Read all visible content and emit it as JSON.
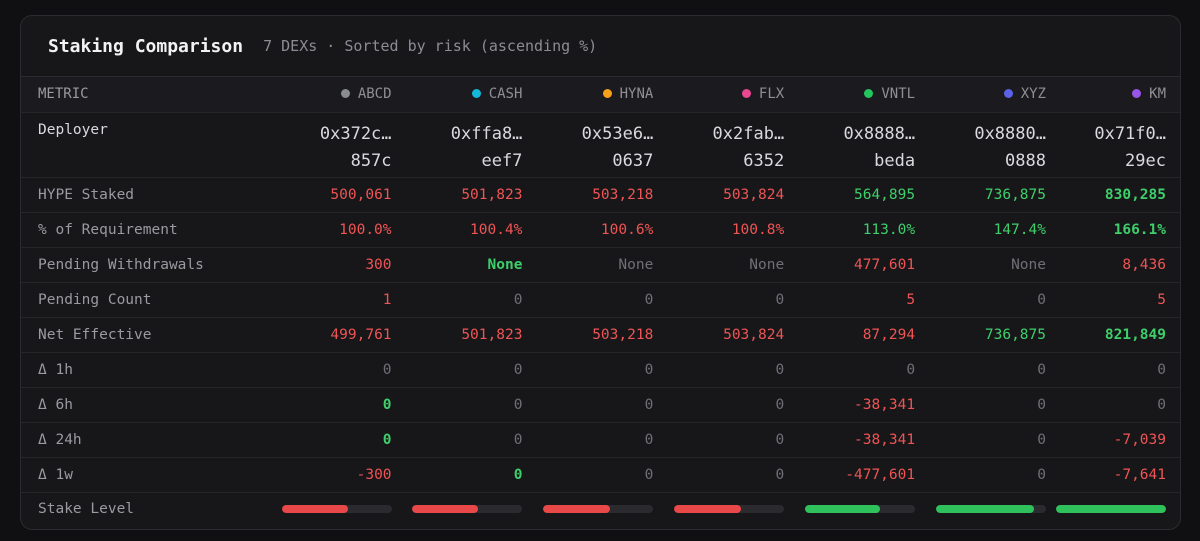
{
  "header": {
    "title": "Staking Comparison",
    "subtitle": "7 DEXs · Sorted by risk (ascending %)"
  },
  "metric_header": "METRIC",
  "dexes": [
    {
      "name": "ABCD",
      "color": "#8b8b92"
    },
    {
      "name": "CASH",
      "color": "#14b8d8"
    },
    {
      "name": "HYNA",
      "color": "#f4a11a"
    },
    {
      "name": "FLX",
      "color": "#e9478f"
    },
    {
      "name": "VNTL",
      "color": "#22c55e"
    },
    {
      "name": "XYZ",
      "color": "#5a63e6"
    },
    {
      "name": "KM",
      "color": "#9a55e8"
    }
  ],
  "deployer": {
    "label": "Deployer",
    "values": [
      {
        "a": "0x372c…",
        "b": "857c"
      },
      {
        "a": "0xffa8…",
        "b": "eef7"
      },
      {
        "a": "0x53e6…",
        "b": "0637"
      },
      {
        "a": "0x2fab…",
        "b": "6352"
      },
      {
        "a": "0x8888…",
        "b": "beda"
      },
      {
        "a": "0x8880…",
        "b": "0888"
      },
      {
        "a": "0x71f0…",
        "b": "29ec"
      }
    ]
  },
  "rows": [
    {
      "label": "HYPE Staked",
      "cells": [
        {
          "v": "500,061",
          "c": "red"
        },
        {
          "v": "501,823",
          "c": "red"
        },
        {
          "v": "503,218",
          "c": "red"
        },
        {
          "v": "503,824",
          "c": "red"
        },
        {
          "v": "564,895",
          "c": "green"
        },
        {
          "v": "736,875",
          "c": "green"
        },
        {
          "v": "830,285",
          "c": "green-b"
        }
      ]
    },
    {
      "label": "% of Requirement",
      "cells": [
        {
          "v": "100.0%",
          "c": "red"
        },
        {
          "v": "100.4%",
          "c": "red"
        },
        {
          "v": "100.6%",
          "c": "red"
        },
        {
          "v": "100.8%",
          "c": "red"
        },
        {
          "v": "113.0%",
          "c": "green"
        },
        {
          "v": "147.4%",
          "c": "green"
        },
        {
          "v": "166.1%",
          "c": "green-b"
        }
      ]
    },
    {
      "label": "Pending Withdrawals",
      "cells": [
        {
          "v": "300",
          "c": "red"
        },
        {
          "v": "None",
          "c": "green-b"
        },
        {
          "v": "None",
          "c": "muted"
        },
        {
          "v": "None",
          "c": "muted"
        },
        {
          "v": "477,601",
          "c": "red"
        },
        {
          "v": "None",
          "c": "muted"
        },
        {
          "v": "8,436",
          "c": "red"
        }
      ]
    },
    {
      "label": "Pending Count",
      "cells": [
        {
          "v": "1",
          "c": "red"
        },
        {
          "v": "0",
          "c": "muted"
        },
        {
          "v": "0",
          "c": "muted"
        },
        {
          "v": "0",
          "c": "muted"
        },
        {
          "v": "5",
          "c": "red"
        },
        {
          "v": "0",
          "c": "muted"
        },
        {
          "v": "5",
          "c": "red"
        }
      ]
    },
    {
      "label": "Net Effective",
      "cells": [
        {
          "v": "499,761",
          "c": "red"
        },
        {
          "v": "501,823",
          "c": "red"
        },
        {
          "v": "503,218",
          "c": "red"
        },
        {
          "v": "503,824",
          "c": "red"
        },
        {
          "v": "87,294",
          "c": "red"
        },
        {
          "v": "736,875",
          "c": "green"
        },
        {
          "v": "821,849",
          "c": "green-b"
        }
      ]
    },
    {
      "label": "Δ 1h",
      "cells": [
        {
          "v": "0",
          "c": "muted"
        },
        {
          "v": "0",
          "c": "muted"
        },
        {
          "v": "0",
          "c": "muted"
        },
        {
          "v": "0",
          "c": "muted"
        },
        {
          "v": "0",
          "c": "muted"
        },
        {
          "v": "0",
          "c": "muted"
        },
        {
          "v": "0",
          "c": "muted"
        }
      ]
    },
    {
      "label": "Δ 6h",
      "cells": [
        {
          "v": "0",
          "c": "green-b"
        },
        {
          "v": "0",
          "c": "muted"
        },
        {
          "v": "0",
          "c": "muted"
        },
        {
          "v": "0",
          "c": "muted"
        },
        {
          "v": "-38,341",
          "c": "red"
        },
        {
          "v": "0",
          "c": "muted"
        },
        {
          "v": "0",
          "c": "muted"
        }
      ]
    },
    {
      "label": "Δ 24h",
      "cells": [
        {
          "v": "0",
          "c": "green-b"
        },
        {
          "v": "0",
          "c": "muted"
        },
        {
          "v": "0",
          "c": "muted"
        },
        {
          "v": "0",
          "c": "muted"
        },
        {
          "v": "-38,341",
          "c": "red"
        },
        {
          "v": "0",
          "c": "muted"
        },
        {
          "v": "-7,039",
          "c": "red"
        }
      ]
    },
    {
      "label": "Δ 1w",
      "cells": [
        {
          "v": "-300",
          "c": "red"
        },
        {
          "v": "0",
          "c": "green-b"
        },
        {
          "v": "0",
          "c": "muted"
        },
        {
          "v": "0",
          "c": "muted"
        },
        {
          "v": "-477,601",
          "c": "red"
        },
        {
          "v": "0",
          "c": "muted"
        },
        {
          "v": "-7,641",
          "c": "red"
        }
      ]
    }
  ],
  "stake_level": {
    "label": "Stake Level",
    "levels": [
      {
        "pct": 60,
        "c": "red"
      },
      {
        "pct": 60,
        "c": "red"
      },
      {
        "pct": 61,
        "c": "red"
      },
      {
        "pct": 61,
        "c": "red"
      },
      {
        "pct": 68,
        "c": "green"
      },
      {
        "pct": 89,
        "c": "green"
      },
      {
        "pct": 100,
        "c": "green"
      }
    ]
  }
}
